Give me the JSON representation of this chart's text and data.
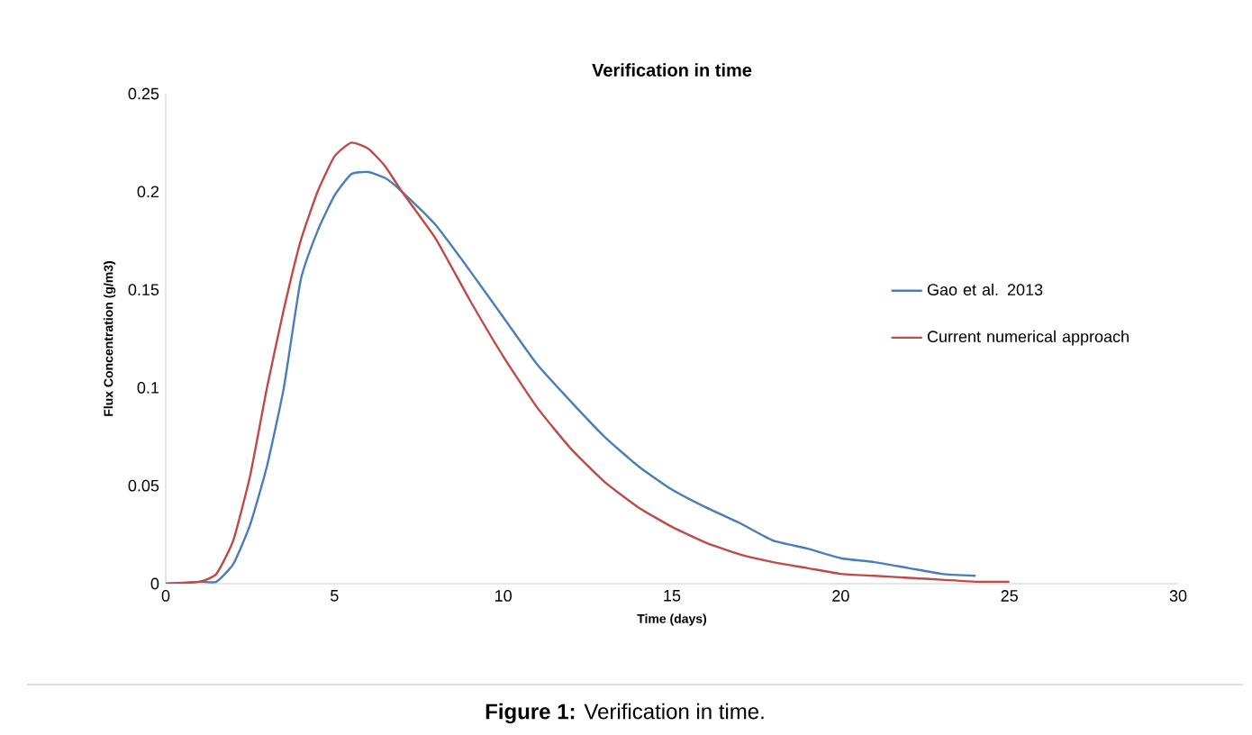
{
  "chart_data": {
    "type": "line",
    "title": "Verification in time",
    "xlabel": "Time (days)",
    "ylabel": "Flux Concentration (g/m3)",
    "annotations": [
      "**Figure 1:** Verification in time."
    ],
    "xlim": [
      0,
      30
    ],
    "xticks": [
      0,
      5,
      10,
      15,
      20,
      25,
      30
    ],
    "ylim": [
      0,
      0.25
    ],
    "yticks": [
      0,
      0.05,
      0.1,
      0.15,
      0.2,
      0.25
    ],
    "grid": false,
    "legend": "right",
    "marker": "none",
    "line_style": "solid",
    "series": [
      {
        "name": "Gao et al. 2013",
        "color": "#4a7ebb",
        "x": [
          0,
          1,
          1.5,
          2,
          2.5,
          3,
          3.5,
          4,
          4.5,
          5,
          5.5,
          6,
          6.5,
          7,
          8,
          9,
          10,
          11,
          12,
          13,
          14,
          15,
          16,
          17,
          18,
          19,
          20,
          21,
          22,
          23,
          24
        ],
        "values": [
          0,
          0.001,
          0.001,
          0.01,
          0.03,
          0.06,
          0.1,
          0.155,
          0.18,
          0.198,
          0.209,
          0.21,
          0.207,
          0.2,
          0.183,
          0.16,
          0.136,
          0.112,
          0.093,
          0.075,
          0.06,
          0.048,
          0.039,
          0.031,
          0.022,
          0.018,
          0.013,
          0.011,
          0.008,
          0.005,
          0.004
        ]
      },
      {
        "name": "Current numerical approach",
        "color": "#be4b48",
        "x": [
          0,
          1,
          1.5,
          2,
          2.5,
          3,
          3.5,
          4,
          4.5,
          5,
          5.5,
          6,
          6.5,
          7,
          8,
          9,
          10,
          11,
          12,
          13,
          14,
          15,
          16,
          17,
          18,
          19,
          20,
          21,
          22,
          23,
          24,
          25
        ],
        "values": [
          0,
          0.001,
          0.005,
          0.022,
          0.055,
          0.1,
          0.14,
          0.175,
          0.2,
          0.218,
          0.225,
          0.222,
          0.213,
          0.2,
          0.176,
          0.145,
          0.116,
          0.09,
          0.069,
          0.052,
          0.039,
          0.029,
          0.021,
          0.015,
          0.011,
          0.008,
          0.005,
          0.004,
          0.003,
          0.002,
          0.001,
          0.001
        ]
      }
    ]
  }
}
